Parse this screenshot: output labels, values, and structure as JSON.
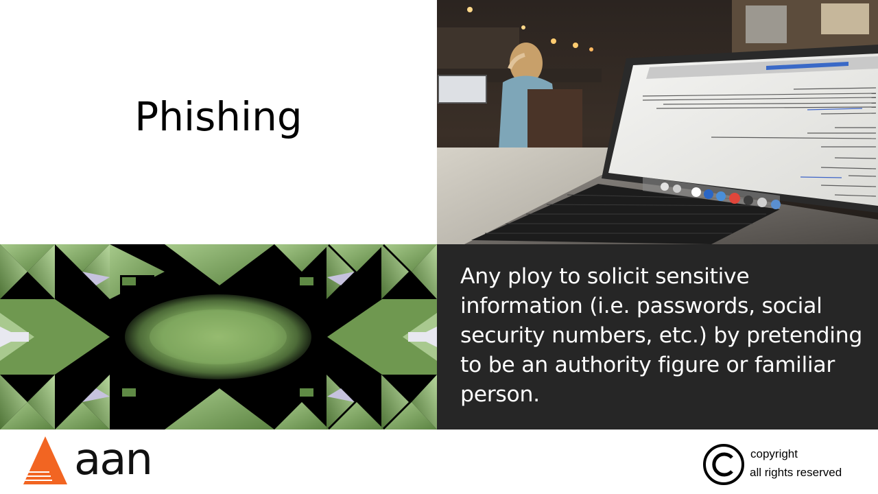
{
  "slide": {
    "title": "Phishing",
    "definition": "Any ploy to solicit sensitive information (i.e. passwords, social security numbers, etc.)  by pretending to be an authority figure or familiar person."
  },
  "footer": {
    "logo_text": "aan",
    "copyright_line1": "copyright",
    "copyright_line2": "all rights reserved"
  },
  "colors": {
    "definition_background": "#262626",
    "logo_orange": "#f26522",
    "pattern_green": "#7fa35a"
  }
}
